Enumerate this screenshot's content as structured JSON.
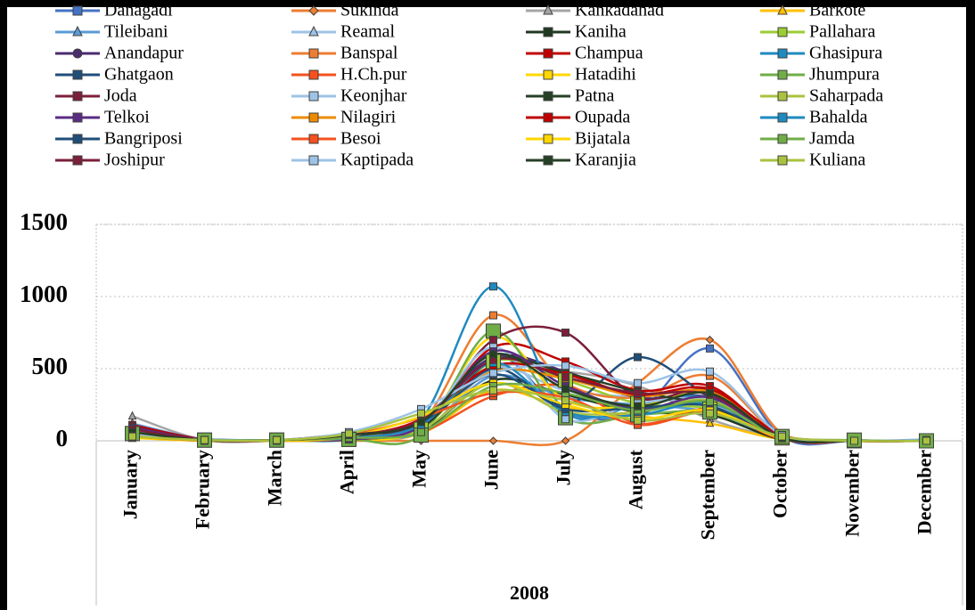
{
  "chart_data": {
    "type": "line",
    "x_label": "2008",
    "categories": [
      "January",
      "February",
      "March",
      "April",
      "May",
      "June",
      "July",
      "August",
      "September",
      "October",
      "November",
      "December"
    ],
    "ylim": [
      0,
      1500
    ],
    "yticks": [
      0,
      500,
      1000,
      1500
    ],
    "grid": true,
    "smooth": true,
    "series": [
      {
        "name": "Danagadi",
        "color": "#4472c4",
        "marker": "square",
        "values": [
          40,
          10,
          5,
          20,
          80,
          600,
          200,
          200,
          640,
          30,
          0,
          5
        ]
      },
      {
        "name": "Sukinda",
        "color": "#ed7d31",
        "marker": "diamond",
        "values": [
          60,
          5,
          0,
          0,
          0,
          0,
          0,
          400,
          700,
          50,
          0,
          0
        ]
      },
      {
        "name": "Kankadahad",
        "color": "#a5a5a5",
        "marker": "triangle",
        "values": [
          170,
          5,
          0,
          10,
          60,
          500,
          480,
          380,
          150,
          20,
          0,
          0
        ]
      },
      {
        "name": "Barkote",
        "color": "#ffc000",
        "marker": "triangle",
        "values": [
          100,
          5,
          0,
          5,
          50,
          350,
          230,
          170,
          120,
          10,
          0,
          0
        ]
      },
      {
        "name": "Tileibani",
        "color": "#5b9bd5",
        "marker": "triangle",
        "values": [
          120,
          10,
          5,
          10,
          60,
          450,
          300,
          250,
          200,
          20,
          0,
          5
        ]
      },
      {
        "name": "Reamal",
        "color": "#9dc3e6",
        "marker": "triangle",
        "values": [
          80,
          10,
          5,
          20,
          100,
          500,
          350,
          300,
          250,
          30,
          0,
          10
        ]
      },
      {
        "name": "Kaniha",
        "color": "#203820",
        "marker": "square",
        "values": [
          60,
          5,
          5,
          10,
          70,
          420,
          320,
          200,
          180,
          10,
          0,
          0
        ]
      },
      {
        "name": "Pallahara",
        "color": "#9acd32",
        "marker": "square",
        "values": [
          50,
          5,
          5,
          10,
          80,
          550,
          420,
          260,
          220,
          20,
          0,
          0
        ]
      },
      {
        "name": "Anandapur",
        "color": "#4b2c6f",
        "marker": "circle",
        "values": [
          30,
          0,
          0,
          20,
          150,
          580,
          480,
          300,
          300,
          20,
          0,
          0
        ]
      },
      {
        "name": "Banspal",
        "color": "#ed7d31",
        "marker": "square",
        "values": [
          50,
          5,
          5,
          10,
          120,
          870,
          400,
          300,
          450,
          30,
          0,
          0
        ]
      },
      {
        "name": "Champua",
        "color": "#c00000",
        "marker": "square",
        "values": [
          110,
          10,
          5,
          10,
          90,
          650,
          550,
          350,
          380,
          20,
          0,
          0
        ]
      },
      {
        "name": "Ghasipura",
        "color": "#1f8ac0",
        "marker": "square",
        "values": [
          60,
          10,
          5,
          10,
          150,
          1070,
          200,
          250,
          300,
          30,
          0,
          5
        ]
      },
      {
        "name": "Ghatgaon",
        "color": "#1f4e79",
        "marker": "square",
        "values": [
          50,
          5,
          5,
          10,
          100,
          500,
          250,
          580,
          300,
          20,
          0,
          0
        ]
      },
      {
        "name": "H.Ch.pur",
        "color": "#f4511e",
        "marker": "square",
        "values": [
          40,
          5,
          0,
          10,
          60,
          310,
          380,
          120,
          220,
          10,
          0,
          0
        ]
      },
      {
        "name": "Hatadihi",
        "color": "#ffd700",
        "marker": "square",
        "values": [
          20,
          0,
          0,
          10,
          90,
          720,
          280,
          240,
          330,
          20,
          0,
          0
        ]
      },
      {
        "name": "Jhumpura",
        "color": "#70ad47",
        "marker": "square",
        "values": [
          50,
          5,
          5,
          10,
          40,
          760,
          160,
          180,
          200,
          30,
          5,
          0
        ]
      },
      {
        "name": "Joda",
        "color": "#7b1f3a",
        "marker": "square",
        "values": [
          100,
          5,
          5,
          50,
          120,
          700,
          750,
          300,
          350,
          20,
          0,
          0
        ]
      },
      {
        "name": "Keonjhar",
        "color": "#9dc3e6",
        "marker": "square",
        "values": [
          30,
          5,
          5,
          20,
          110,
          650,
          150,
          260,
          280,
          30,
          0,
          5
        ]
      },
      {
        "name": "Patna",
        "color": "#264026",
        "marker": "square",
        "values": [
          80,
          5,
          5,
          10,
          90,
          560,
          470,
          340,
          240,
          20,
          0,
          0
        ]
      },
      {
        "name": "Saharpada",
        "color": "#a9c23f",
        "marker": "square",
        "values": [
          40,
          5,
          5,
          10,
          80,
          400,
          200,
          200,
          280,
          20,
          0,
          0
        ]
      },
      {
        "name": "Telkoi",
        "color": "#5b2c83",
        "marker": "square",
        "values": [
          90,
          5,
          5,
          10,
          100,
          620,
          380,
          220,
          300,
          20,
          0,
          0
        ]
      },
      {
        "name": "Nilagiri",
        "color": "#ed8b00",
        "marker": "square",
        "values": [
          30,
          0,
          0,
          20,
          140,
          480,
          430,
          310,
          340,
          40,
          0,
          0
        ]
      },
      {
        "name": "Oupada",
        "color": "#c00000",
        "marker": "square",
        "values": [
          60,
          5,
          0,
          30,
          150,
          520,
          460,
          320,
          360,
          40,
          0,
          0
        ]
      },
      {
        "name": "Bahalda",
        "color": "#1f8ac0",
        "marker": "square",
        "values": [
          40,
          5,
          5,
          20,
          110,
          540,
          200,
          180,
          260,
          30,
          0,
          0
        ]
      },
      {
        "name": "Bangriposi",
        "color": "#1f4e79",
        "marker": "square",
        "values": [
          50,
          5,
          5,
          30,
          130,
          460,
          220,
          230,
          240,
          20,
          0,
          0
        ]
      },
      {
        "name": "Besoi",
        "color": "#f4511e",
        "marker": "square",
        "values": [
          40,
          5,
          5,
          40,
          160,
          330,
          300,
          110,
          200,
          30,
          0,
          0
        ]
      },
      {
        "name": "Bijatala",
        "color": "#ffd700",
        "marker": "square",
        "values": [
          30,
          5,
          0,
          30,
          170,
          400,
          250,
          150,
          210,
          20,
          0,
          0
        ]
      },
      {
        "name": "Jamda",
        "color": "#70ad47",
        "marker": "square",
        "values": [
          70,
          5,
          5,
          20,
          60,
          380,
          330,
          210,
          270,
          20,
          0,
          0
        ]
      },
      {
        "name": "Joshipur",
        "color": "#7b1f3a",
        "marker": "square",
        "values": [
          80,
          5,
          5,
          40,
          140,
          560,
          440,
          330,
          320,
          30,
          0,
          0
        ]
      },
      {
        "name": "Kaptipada",
        "color": "#9dc3e6",
        "marker": "square",
        "values": [
          50,
          5,
          5,
          60,
          220,
          470,
          520,
          400,
          480,
          40,
          0,
          5
        ]
      },
      {
        "name": "Karanjia",
        "color": "#264026",
        "marker": "square",
        "values": [
          60,
          5,
          5,
          40,
          130,
          600,
          360,
          240,
          330,
          20,
          0,
          0
        ]
      },
      {
        "name": "Kuliana",
        "color": "#a9c23f",
        "marker": "square",
        "values": [
          30,
          5,
          5,
          50,
          190,
          350,
          280,
          140,
          190,
          30,
          0,
          0
        ]
      }
    ]
  }
}
